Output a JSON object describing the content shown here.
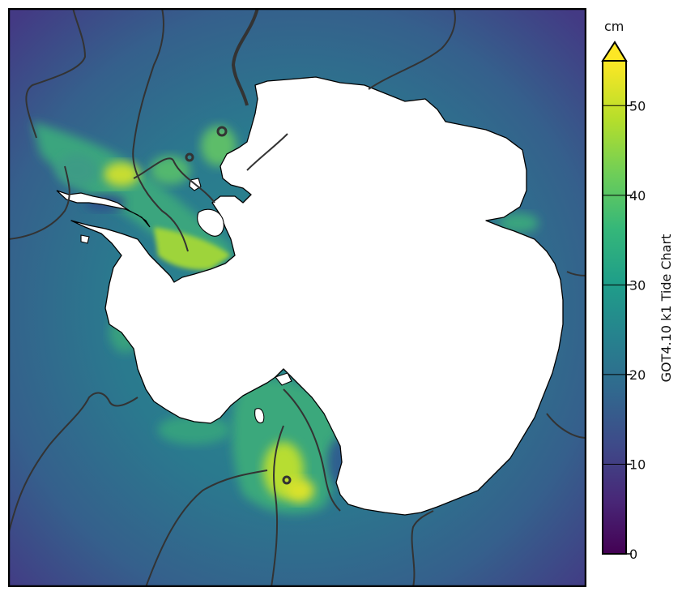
{
  "map": {
    "colors": {
      "ocean_far": "#3f3a82",
      "ocean_mid": "#2a7a8e",
      "shelf": "#3aac79",
      "high": "#d7e22a",
      "land": "#ffffff",
      "coast": "#000000",
      "contour": "#333333"
    }
  },
  "colorbar": {
    "unit": "cm",
    "label": "GOT4.10 k1 Tide Chart",
    "ticks": [
      "0",
      "10",
      "20",
      "30",
      "40",
      "50"
    ],
    "tick_values": [
      0,
      10,
      20,
      30,
      40,
      50
    ],
    "min": 0,
    "max": 55,
    "extend": "max",
    "colormap": [
      "#440154",
      "#482878",
      "#3e4a89",
      "#31688e",
      "#26828e",
      "#1f9e89",
      "#35b779",
      "#6ece58",
      "#b5de2b",
      "#fde725"
    ]
  }
}
